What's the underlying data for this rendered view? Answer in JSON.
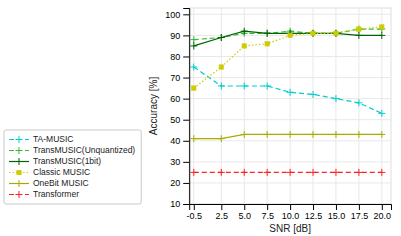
{
  "chart_data": {
    "type": "line",
    "x_label": "SNR [dB]",
    "y_label": "Accuracy [%]",
    "x": [
      -0.5,
      2.5,
      5.0,
      7.5,
      10.0,
      12.5,
      15.0,
      17.5,
      20.0
    ],
    "xlim": [
      -1,
      21
    ],
    "xticks": [
      -0.5,
      2.5,
      {
        "value": 5.0,
        "label": "5.0"
      },
      7.5,
      {
        "value": 10.0,
        "label": "10.0"
      },
      12.5,
      {
        "value": 15.0,
        "label": "15.0"
      },
      17.5,
      {
        "value": 20.0,
        "label": "20.0"
      }
    ],
    "ylim": [
      10,
      103
    ],
    "yticks": [
      10,
      20,
      30,
      40,
      50,
      60,
      70,
      80,
      90,
      100
    ],
    "grid": true,
    "legend": "lower left",
    "series": [
      {
        "name": "TA-MUSIC",
        "color": "#00cccc",
        "line_style": "dashed",
        "marker": "plus",
        "values": [
          75,
          66,
          66,
          66,
          63,
          62,
          60,
          58,
          53
        ]
      },
      {
        "name": "TransMUSIC(Unquantized)",
        "color": "#33bb33",
        "line_style": "dashed",
        "marker": "plus",
        "values": [
          88,
          89,
          91,
          91,
          92,
          91,
          91,
          93,
          93
        ]
      },
      {
        "name": "TransMUSIC(1bit)",
        "color": "#006400",
        "line_style": "solid",
        "marker": "plus",
        "values": [
          85,
          89,
          92,
          91,
          91,
          91,
          91,
          90,
          90
        ]
      },
      {
        "name": "Classic MUSIC",
        "color": "#cccc00",
        "line_style": "dotted",
        "marker": "square",
        "values": [
          65,
          75,
          85,
          86,
          90,
          91,
          91,
          93,
          94
        ]
      },
      {
        "name": "OneBit MUSIC",
        "color": "#aaaa00",
        "line_style": "solid",
        "marker": "plus",
        "values": [
          41,
          41,
          43,
          43,
          43,
          43,
          43,
          43,
          43
        ]
      },
      {
        "name": "Transformer",
        "color": "#ff2222",
        "line_style": "dashed",
        "marker": "plus",
        "values": [
          25,
          25,
          25,
          25,
          25,
          25,
          25,
          25,
          25
        ]
      }
    ]
  }
}
